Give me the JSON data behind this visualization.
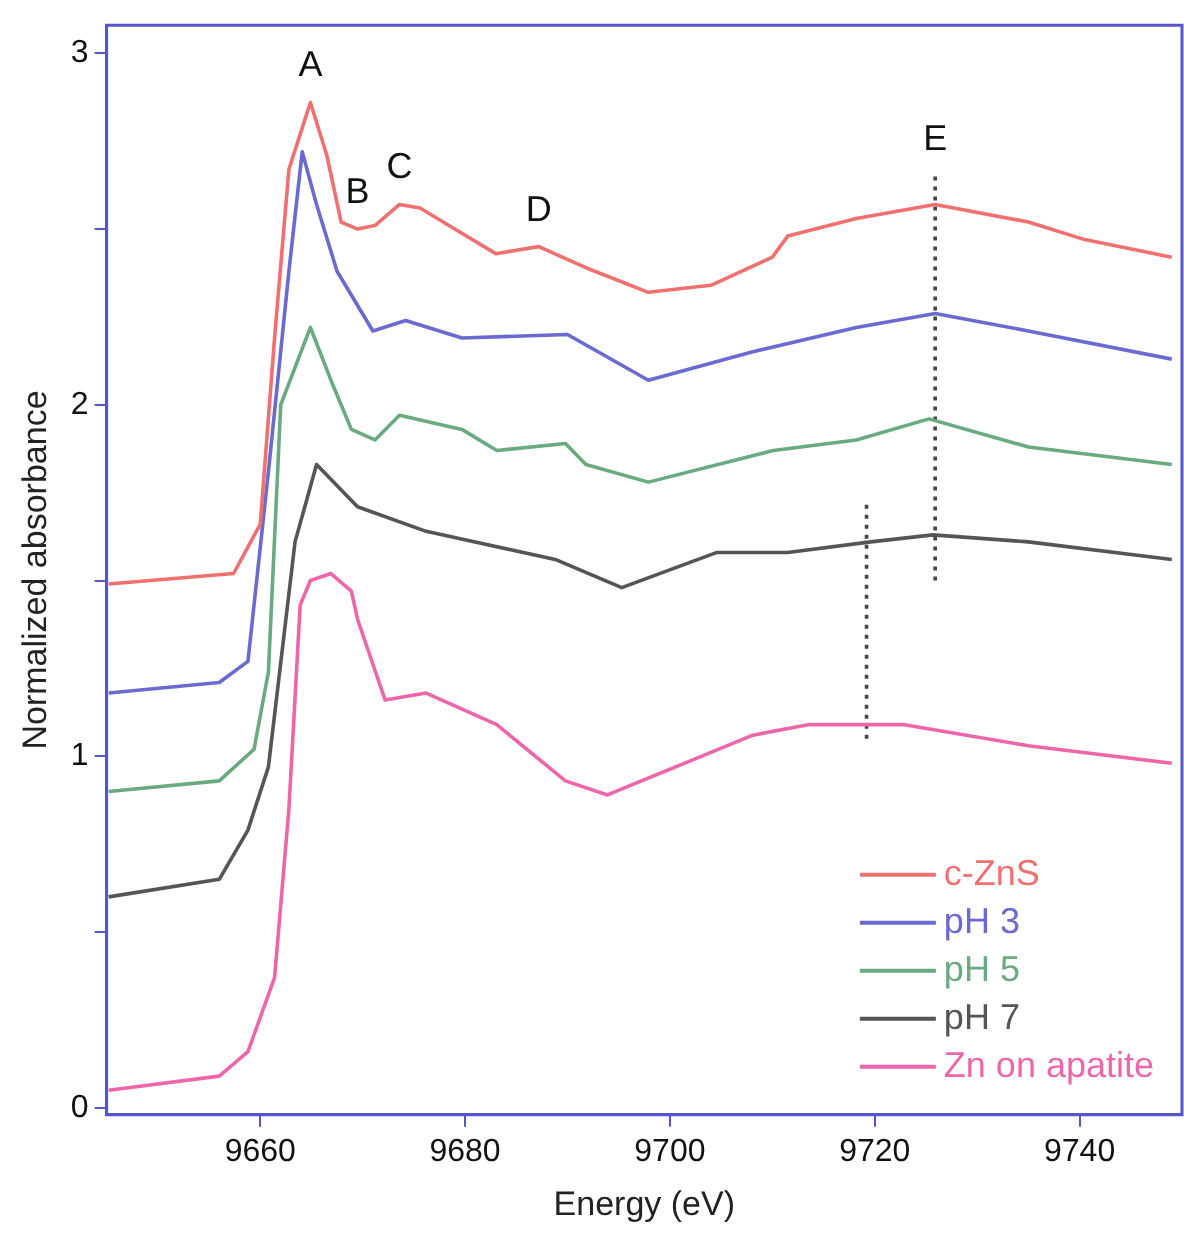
{
  "chart_data": {
    "type": "line",
    "xlabel": "Energy (eV)",
    "ylabel": "Normalized absorbance",
    "xlim": [
      9645,
      9750
    ],
    "ylim": [
      -0.02,
      3.08
    ],
    "xticks": [
      9660,
      9680,
      9700,
      9720,
      9740
    ],
    "yticks": [
      0,
      {
        "value": 0.5,
        "label": null
      },
      1,
      {
        "value": 1.5,
        "label": null
      },
      2,
      {
        "value": 2.5,
        "label": null
      },
      3
    ],
    "grid": false,
    "legend": "bottom right",
    "marker": "none",
    "line_style": "solid",
    "annotations": [
      {
        "text": "A",
        "x": 9664.9,
        "y": 2.86
      },
      {
        "text": "B",
        "x": 9669.5,
        "y": 2.5
      },
      {
        "text": "C",
        "x": 9673.6,
        "y": 2.57
      },
      {
        "text": "D",
        "x": 9687.2,
        "y": 2.45
      },
      {
        "text": "E",
        "x": 9725.9,
        "y": 2.65
      }
    ],
    "series": [
      {
        "name": "c-ZnS",
        "color": "#f07070",
        "x": [
          9645.2,
          9657.4,
          9660,
          9661.4,
          9662.8,
          9664.9,
          9666.5,
          9667.9,
          9669.5,
          9671.2,
          9673.6,
          9675.6,
          9679,
          9683,
          9687.2,
          9691.8,
          9697.9,
          9704,
          9710,
          9711.5,
          9718.2,
          9725.9,
          9735,
          9740.5,
          9749
        ],
        "values": [
          1.49,
          1.52,
          1.66,
          2.19,
          2.67,
          2.86,
          2.71,
          2.52,
          2.5,
          2.51,
          2.57,
          2.56,
          2.5,
          2.43,
          2.45,
          2.39,
          2.32,
          2.34,
          2.42,
          2.48,
          2.53,
          2.57,
          2.52,
          2.47,
          2.42
        ]
      },
      {
        "name": "pH 3",
        "color": "#6a6ad0",
        "x": [
          9645.2,
          9656,
          9658.8,
          9660.8,
          9662.8,
          9664.1,
          9665.5,
          9667.5,
          9671,
          9674.2,
          9679.7,
          9690,
          9697.9,
          9708,
          9718.2,
          9725.9,
          9735,
          9749
        ],
        "values": [
          1.18,
          1.21,
          1.27,
          1.81,
          2.38,
          2.72,
          2.57,
          2.38,
          2.21,
          2.24,
          2.19,
          2.2,
          2.07,
          2.15,
          2.22,
          2.26,
          2.21,
          2.13
        ]
      },
      {
        "name": "pH 5",
        "color": "#6aaa80",
        "x": [
          9645.2,
          9656,
          9659.4,
          9660.8,
          9662,
          9664.9,
          9666.9,
          9668.9,
          9671.2,
          9673.6,
          9679.7,
          9683.1,
          9689.8,
          9691.8,
          9697.9,
          9710.1,
          9718.2,
          9725.3,
          9735,
          9749
        ],
        "values": [
          0.9,
          0.93,
          1.02,
          1.24,
          2.0,
          2.22,
          2.07,
          1.93,
          1.9,
          1.97,
          1.93,
          1.87,
          1.89,
          1.83,
          1.78,
          1.87,
          1.9,
          1.96,
          1.88,
          1.83
        ]
      },
      {
        "name": "pH 7",
        "color": "#555555",
        "x": [
          9645.2,
          9656,
          9658.8,
          9660.8,
          9663.4,
          9665.5,
          9669.5,
          9676.2,
          9688.8,
          9695.3,
          9704.6,
          9711.5,
          9719.6,
          9725.7,
          9735,
          9749
        ],
        "values": [
          0.6,
          0.65,
          0.79,
          0.97,
          1.61,
          1.83,
          1.71,
          1.64,
          1.56,
          1.48,
          1.58,
          1.58,
          1.61,
          1.63,
          1.61,
          1.56
        ]
      },
      {
        "name": "Zn on apatite",
        "color": "#ee66aa",
        "x": [
          9645.2,
          9656,
          9658.8,
          9661.4,
          9662.8,
          9663.9,
          9664.9,
          9666.9,
          9668.9,
          9669.5,
          9672.2,
          9676.2,
          9683.1,
          9689.8,
          9693.9,
          9701.4,
          9708.1,
          9713.5,
          9722.9,
          9735,
          9749
        ],
        "values": [
          0.05,
          0.09,
          0.16,
          0.37,
          0.85,
          1.43,
          1.5,
          1.52,
          1.47,
          1.39,
          1.16,
          1.18,
          1.09,
          0.93,
          0.89,
          0.98,
          1.06,
          1.09,
          1.09,
          1.03,
          0.98
        ]
      },
      {
        "color": "#444444",
        "line_style": "dotted",
        "x": [
          9725.9,
          9725.9
        ],
        "values": [
          1.5,
          2.65
        ]
      },
      {
        "color": "#444444",
        "line_style": "dotted",
        "x": [
          9719.2,
          9719.2
        ],
        "values": [
          1.05,
          1.72
        ]
      }
    ]
  }
}
